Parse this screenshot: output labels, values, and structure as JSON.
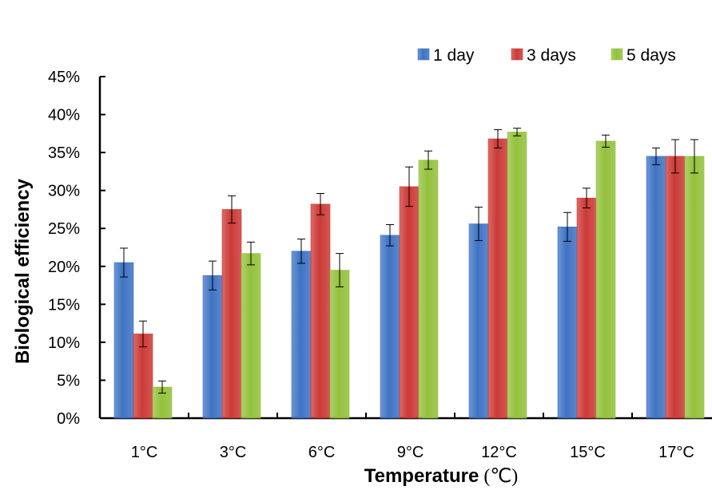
{
  "chart_data": {
    "type": "bar",
    "title": "",
    "xlabel": "Temperature",
    "xlabel_unit": "(℃)",
    "ylabel": "Biological efficiency",
    "ylim": [
      0,
      0.45
    ],
    "y_ticks": [
      "0%",
      "5%",
      "10%",
      "15%",
      "20%",
      "25%",
      "30%",
      "35%",
      "40%",
      "45%"
    ],
    "categories": [
      "1°C",
      "3°C",
      "6°C",
      "9°C",
      "12°C",
      "15°C",
      "17°C"
    ],
    "series": [
      {
        "name": "1 day",
        "color": "#3f73c4",
        "values": [
          0.205,
          0.188,
          0.22,
          0.241,
          0.256,
          0.252,
          0.345
        ],
        "errors": [
          0.019,
          0.019,
          0.016,
          0.014,
          0.022,
          0.019,
          0.011
        ]
      },
      {
        "name": "3 days",
        "color": "#cc3a36",
        "values": [
          0.111,
          0.275,
          0.282,
          0.305,
          0.368,
          0.29,
          0.345
        ],
        "errors": [
          0.017,
          0.018,
          0.014,
          0.026,
          0.012,
          0.013,
          0.022
        ]
      },
      {
        "name": "5 days",
        "color": "#93c13c",
        "values": [
          0.041,
          0.217,
          0.195,
          0.34,
          0.377,
          0.365,
          0.345
        ],
        "errors": [
          0.008,
          0.015,
          0.022,
          0.012,
          0.005,
          0.008,
          0.022
        ]
      }
    ],
    "legend_position": "top-right",
    "grid": false
  }
}
